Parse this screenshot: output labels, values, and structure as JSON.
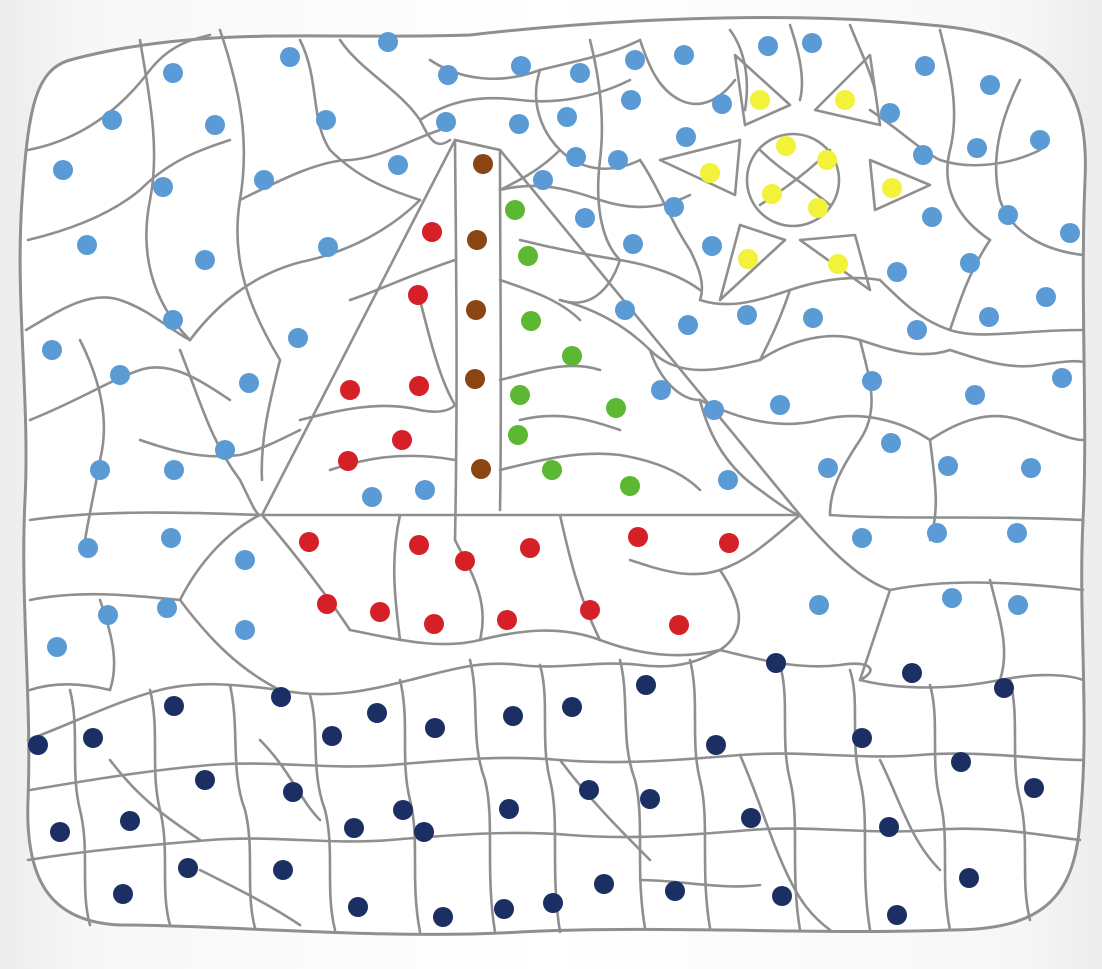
{
  "puzzle": {
    "type": "color-by-dot",
    "palette": {
      "light_blue": "#5b9bd5",
      "dark_blue": "#1b2f63",
      "red": "#d62027",
      "brown": "#8b4513",
      "green": "#5cb832",
      "yellow": "#f2f23a",
      "line": "#8f8f8f"
    },
    "icons": {
      "tree": "fir-tree-icon",
      "sun": "sun-icon",
      "sky": "sky-region",
      "ground": "ground-region"
    }
  }
}
